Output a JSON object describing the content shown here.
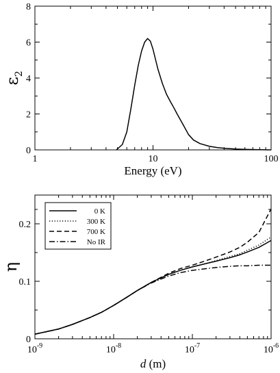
{
  "chart_data": [
    {
      "type": "line",
      "ylabel": "ε",
      "ylabel_sub": "2",
      "xlabel": "Energy (eV)",
      "xscale": "log",
      "xlim": [
        1,
        100
      ],
      "ylim": [
        0,
        8
      ],
      "xticks": [
        1,
        10,
        100
      ],
      "xtick_labels": [
        "1",
        "10",
        "100"
      ],
      "yticks": [
        0,
        2,
        4,
        6,
        8
      ],
      "ytick_labels": [
        "0",
        "2",
        "4",
        "6",
        "8"
      ],
      "grid": false,
      "series": [
        {
          "style": "solid",
          "x": [
            4.9,
            5.5,
            6.0,
            6.5,
            7.0,
            7.5,
            8.0,
            8.5,
            9.0,
            9.5,
            10.0,
            11.0,
            12.0,
            13.0,
            14.0,
            15.0,
            16.0,
            18.0,
            20.0,
            22.0,
            25.0,
            30.0,
            35.0,
            40.0,
            50.0,
            60.0,
            70.0,
            80.0,
            90.0,
            100.0
          ],
          "y": [
            0.0,
            0.3,
            1.0,
            2.3,
            3.6,
            4.7,
            5.5,
            6.0,
            6.2,
            6.05,
            5.6,
            4.5,
            3.7,
            3.1,
            2.7,
            2.35,
            2.0,
            1.4,
            0.85,
            0.55,
            0.35,
            0.2,
            0.13,
            0.09,
            0.05,
            0.03,
            0.02,
            0.01,
            0.005,
            0.0
          ]
        }
      ]
    },
    {
      "type": "line",
      "ylabel": "η",
      "xlabel_italic": "d",
      "xlabel_rest": " (m)",
      "xscale": "log",
      "xlim": [
        1e-09,
        1e-06
      ],
      "ylim": [
        0,
        0.25
      ],
      "xticks": [
        1e-09,
        1e-08,
        1e-07,
        1e-06
      ],
      "xtick_bases": [
        "10",
        "10",
        "10",
        "10"
      ],
      "xtick_exps": [
        "-9",
        "-8",
        "-7",
        "-6"
      ],
      "yticks": [
        0,
        0.1,
        0.2
      ],
      "ytick_labels": [
        "0",
        "0.1",
        "0.2"
      ],
      "grid": false,
      "legend_position": "top-left",
      "series": [
        {
          "name": "0 K",
          "style": "solid",
          "x": [
            1e-09,
            2e-09,
            3e-09,
            5e-09,
            7e-09,
            1e-08,
            1.5e-08,
            2e-08,
            3e-08,
            4e-08,
            5e-08,
            7e-08,
            1e-07,
            1.5e-07,
            2e-07,
            3e-07,
            4e-07,
            5e-07,
            7e-07,
            1e-06
          ],
          "y": [
            0.008,
            0.017,
            0.025,
            0.037,
            0.046,
            0.058,
            0.073,
            0.084,
            0.098,
            0.106,
            0.112,
            0.119,
            0.125,
            0.131,
            0.135,
            0.141,
            0.146,
            0.151,
            0.159,
            0.171
          ]
        },
        {
          "name": "300 K",
          "style": "dotted",
          "x": [
            1e-09,
            2e-09,
            3e-09,
            5e-09,
            7e-09,
            1e-08,
            1.5e-08,
            2e-08,
            3e-08,
            4e-08,
            5e-08,
            7e-08,
            1e-07,
            1.5e-07,
            2e-07,
            3e-07,
            4e-07,
            5e-07,
            7e-07,
            1e-06
          ],
          "y": [
            0.008,
            0.017,
            0.025,
            0.037,
            0.046,
            0.058,
            0.073,
            0.084,
            0.098,
            0.106,
            0.112,
            0.119,
            0.125,
            0.131,
            0.136,
            0.143,
            0.148,
            0.154,
            0.163,
            0.177
          ]
        },
        {
          "name": "700 K",
          "style": "dashed",
          "x": [
            1e-09,
            2e-09,
            3e-09,
            5e-09,
            7e-09,
            1e-08,
            1.5e-08,
            2e-08,
            3e-08,
            4e-08,
            5e-08,
            7e-08,
            1e-07,
            1.5e-07,
            2e-07,
            3e-07,
            4e-07,
            5e-07,
            7e-07,
            1e-06
          ],
          "y": [
            0.008,
            0.017,
            0.025,
            0.037,
            0.046,
            0.058,
            0.073,
            0.084,
            0.098,
            0.107,
            0.114,
            0.122,
            0.128,
            0.136,
            0.142,
            0.151,
            0.159,
            0.168,
            0.185,
            0.226
          ]
        },
        {
          "name": "No IR",
          "style": "dashdot",
          "x": [
            1e-09,
            2e-09,
            3e-09,
            5e-09,
            7e-09,
            1e-08,
            1.5e-08,
            2e-08,
            3e-08,
            4e-08,
            5e-08,
            7e-08,
            1e-07,
            1.5e-07,
            2e-07,
            3e-07,
            4e-07,
            5e-07,
            7e-07,
            1e-06
          ],
          "y": [
            0.008,
            0.017,
            0.025,
            0.037,
            0.046,
            0.058,
            0.073,
            0.084,
            0.097,
            0.104,
            0.109,
            0.115,
            0.119,
            0.122,
            0.124,
            0.126,
            0.127,
            0.127,
            0.128,
            0.128
          ]
        }
      ]
    }
  ]
}
